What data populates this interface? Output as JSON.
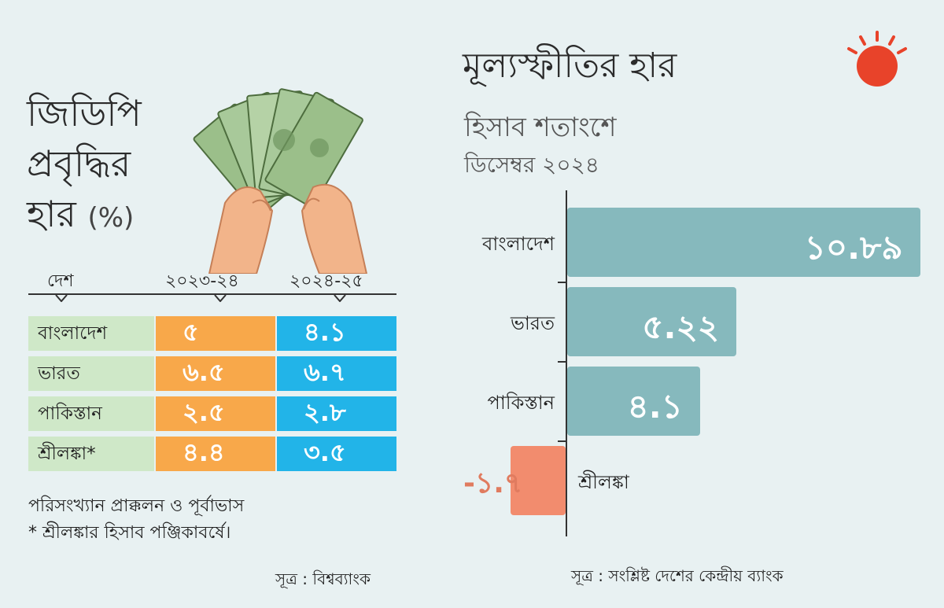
{
  "gdp": {
    "title_line1": "জিডিপি",
    "title_line2": "প্রবৃদ্ধির",
    "title_line3": "হার",
    "title_unit": "(%)",
    "col_country": "দেশ",
    "col_year1": "২০২৩-২৪",
    "col_year2": "২০২৪-২৫",
    "rows": [
      {
        "country": "বাংলাদেশ",
        "y1": "৫",
        "y2": "৪.১"
      },
      {
        "country": "ভারত",
        "y1": "৬.৫",
        "y2": "৬.৭"
      },
      {
        "country": "পাকিস্তান",
        "y1": "২.৫",
        "y2": "২.৮"
      },
      {
        "country": "শ্রীলঙ্কা*",
        "y1": "৪.৪",
        "y2": "৩.৫"
      }
    ],
    "note1": "পরিসংখ্যান প্রাক্কলন ও পূর্বাভাস",
    "note2": "* শ্রীলঙ্কার হিসাব পঞ্জিকাবর্ষে।",
    "source": "সূত্র : বিশ্বব্যাংক"
  },
  "chart_data": {
    "type": "bar",
    "title": "মূল্যস্ফীতির হার",
    "subtitle": "হিসাব শতাংশে",
    "period": "ডিসেম্বর ২০২৪",
    "categories": [
      "বাংলাদেশ",
      "ভারত",
      "পাকিস্তান",
      "শ্রীলঙ্কা"
    ],
    "values": [
      10.89,
      5.22,
      4.1,
      -1.7
    ],
    "value_labels": [
      "১০.৮৯",
      "৫.২২",
      "৪.১",
      "-১.৭"
    ],
    "colors": {
      "positive": "#86b9bd",
      "negative": "#f28c6e",
      "negative_label": "#e07b5f"
    },
    "source": "সূত্র : সংশ্লিষ্ট দেশের কেন্দ্রীয় ব্যাংক"
  },
  "logo": {
    "color": "#e8432a",
    "name": "sun-logo-icon"
  },
  "illustration": {
    "name": "money-hands-icon"
  }
}
